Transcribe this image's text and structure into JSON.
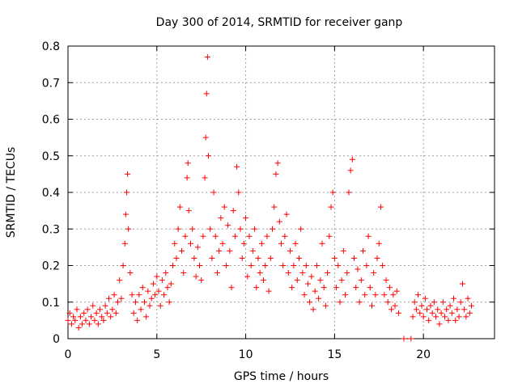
{
  "chart_data": {
    "type": "scatter",
    "title": "Day 300 of 2014, SRMTID for receiver ganp",
    "xlabel": "GPS time / hours",
    "ylabel": "SRMTID / TECUs",
    "xlim": [
      0,
      24
    ],
    "ylim": [
      0,
      0.8
    ],
    "xticks": [
      0,
      5,
      10,
      15,
      20
    ],
    "xtick_labels": [
      "0",
      "5",
      "10",
      "15",
      "20"
    ],
    "yticks": [
      0,
      0.1,
      0.2,
      0.3,
      0.4,
      0.5,
      0.6,
      0.7,
      0.8
    ],
    "ytick_labels": [
      "0",
      "0.1",
      "0.2",
      "0.3",
      "0.4",
      "0.5",
      "0.6",
      "0.7",
      "0.8"
    ],
    "grid": true,
    "marker": "plus",
    "color": "#ff0000",
    "series": [
      {
        "name": "SRMTID",
        "points": [
          [
            0.0,
            0.05
          ],
          [
            0.1,
            0.07
          ],
          [
            0.2,
            0.04
          ],
          [
            0.3,
            0.06
          ],
          [
            0.4,
            0.05
          ],
          [
            0.5,
            0.08
          ],
          [
            0.6,
            0.03
          ],
          [
            0.7,
            0.06
          ],
          [
            0.8,
            0.04
          ],
          [
            0.9,
            0.07
          ],
          [
            1.0,
            0.05
          ],
          [
            1.1,
            0.08
          ],
          [
            1.2,
            0.04
          ],
          [
            1.3,
            0.06
          ],
          [
            1.4,
            0.09
          ],
          [
            1.5,
            0.05
          ],
          [
            1.6,
            0.07
          ],
          [
            1.7,
            0.04
          ],
          [
            1.8,
            0.08
          ],
          [
            1.9,
            0.06
          ],
          [
            2.0,
            0.05
          ],
          [
            2.1,
            0.09
          ],
          [
            2.2,
            0.07
          ],
          [
            2.3,
            0.11
          ],
          [
            2.4,
            0.06
          ],
          [
            2.5,
            0.08
          ],
          [
            2.6,
            0.12
          ],
          [
            2.7,
            0.07
          ],
          [
            2.8,
            0.1
          ],
          [
            2.9,
            0.16
          ],
          [
            3.0,
            0.11
          ],
          [
            3.1,
            0.2
          ],
          [
            3.2,
            0.26
          ],
          [
            3.25,
            0.34
          ],
          [
            3.3,
            0.4
          ],
          [
            3.35,
            0.45
          ],
          [
            3.4,
            0.3
          ],
          [
            3.5,
            0.18
          ],
          [
            3.6,
            0.12
          ],
          [
            3.7,
            0.07
          ],
          [
            3.8,
            0.1
          ],
          [
            3.9,
            0.05
          ],
          [
            4.0,
            0.12
          ],
          [
            4.1,
            0.08
          ],
          [
            4.2,
            0.14
          ],
          [
            4.3,
            0.1
          ],
          [
            4.4,
            0.06
          ],
          [
            4.5,
            0.13
          ],
          [
            4.6,
            0.09
          ],
          [
            4.7,
            0.11
          ],
          [
            4.8,
            0.15
          ],
          [
            4.9,
            0.12
          ],
          [
            5.0,
            0.17
          ],
          [
            5.1,
            0.13
          ],
          [
            5.2,
            0.09
          ],
          [
            5.3,
            0.16
          ],
          [
            5.4,
            0.12
          ],
          [
            5.5,
            0.18
          ],
          [
            5.6,
            0.14
          ],
          [
            5.7,
            0.1
          ],
          [
            5.8,
            0.15
          ],
          [
            5.9,
            0.2
          ],
          [
            6.0,
            0.26
          ],
          [
            6.1,
            0.22
          ],
          [
            6.2,
            0.3
          ],
          [
            6.3,
            0.36
          ],
          [
            6.4,
            0.24
          ],
          [
            6.5,
            0.18
          ],
          [
            6.6,
            0.28
          ],
          [
            6.7,
            0.44
          ],
          [
            6.75,
            0.48
          ],
          [
            6.8,
            0.35
          ],
          [
            6.9,
            0.26
          ],
          [
            7.0,
            0.3
          ],
          [
            7.1,
            0.22
          ],
          [
            7.2,
            0.17
          ],
          [
            7.3,
            0.25
          ],
          [
            7.4,
            0.2
          ],
          [
            7.5,
            0.16
          ],
          [
            7.6,
            0.28
          ],
          [
            7.7,
            0.44
          ],
          [
            7.75,
            0.55
          ],
          [
            7.8,
            0.67
          ],
          [
            7.85,
            0.77
          ],
          [
            7.9,
            0.5
          ],
          [
            8.0,
            0.3
          ],
          [
            8.1,
            0.22
          ],
          [
            8.2,
            0.4
          ],
          [
            8.3,
            0.28
          ],
          [
            8.4,
            0.18
          ],
          [
            8.5,
            0.24
          ],
          [
            8.6,
            0.33
          ],
          [
            8.7,
            0.26
          ],
          [
            8.8,
            0.36
          ],
          [
            8.9,
            0.2
          ],
          [
            9.0,
            0.31
          ],
          [
            9.1,
            0.24
          ],
          [
            9.2,
            0.14
          ],
          [
            9.3,
            0.35
          ],
          [
            9.4,
            0.28
          ],
          [
            9.5,
            0.47
          ],
          [
            9.6,
            0.4
          ],
          [
            9.7,
            0.3
          ],
          [
            9.8,
            0.22
          ],
          [
            9.9,
            0.26
          ],
          [
            10.0,
            0.33
          ],
          [
            10.1,
            0.17
          ],
          [
            10.2,
            0.28
          ],
          [
            10.3,
            0.2
          ],
          [
            10.4,
            0.24
          ],
          [
            10.5,
            0.3
          ],
          [
            10.6,
            0.14
          ],
          [
            10.7,
            0.22
          ],
          [
            10.8,
            0.18
          ],
          [
            10.9,
            0.26
          ],
          [
            11.0,
            0.16
          ],
          [
            11.1,
            0.2
          ],
          [
            11.2,
            0.28
          ],
          [
            11.3,
            0.13
          ],
          [
            11.4,
            0.22
          ],
          [
            11.5,
            0.3
          ],
          [
            11.6,
            0.36
          ],
          [
            11.7,
            0.45
          ],
          [
            11.8,
            0.48
          ],
          [
            11.9,
            0.32
          ],
          [
            12.0,
            0.26
          ],
          [
            12.1,
            0.2
          ],
          [
            12.2,
            0.28
          ],
          [
            12.3,
            0.34
          ],
          [
            12.4,
            0.18
          ],
          [
            12.5,
            0.24
          ],
          [
            12.6,
            0.14
          ],
          [
            12.7,
            0.2
          ],
          [
            12.8,
            0.26
          ],
          [
            12.9,
            0.16
          ],
          [
            13.0,
            0.22
          ],
          [
            13.1,
            0.3
          ],
          [
            13.2,
            0.18
          ],
          [
            13.3,
            0.12
          ],
          [
            13.4,
            0.2
          ],
          [
            13.5,
            0.15
          ],
          [
            13.6,
            0.1
          ],
          [
            13.7,
            0.17
          ],
          [
            13.8,
            0.08
          ],
          [
            13.9,
            0.13
          ],
          [
            14.0,
            0.2
          ],
          [
            14.1,
            0.11
          ],
          [
            14.2,
            0.16
          ],
          [
            14.3,
            0.26
          ],
          [
            14.4,
            0.14
          ],
          [
            14.5,
            0.09
          ],
          [
            14.6,
            0.18
          ],
          [
            14.7,
            0.28
          ],
          [
            14.8,
            0.36
          ],
          [
            14.9,
            0.4
          ],
          [
            15.0,
            0.22
          ],
          [
            15.1,
            0.14
          ],
          [
            15.2,
            0.2
          ],
          [
            15.3,
            0.1
          ],
          [
            15.4,
            0.16
          ],
          [
            15.5,
            0.24
          ],
          [
            15.6,
            0.12
          ],
          [
            15.7,
            0.18
          ],
          [
            15.8,
            0.4
          ],
          [
            15.9,
            0.46
          ],
          [
            16.0,
            0.49
          ],
          [
            16.1,
            0.22
          ],
          [
            16.2,
            0.14
          ],
          [
            16.3,
            0.19
          ],
          [
            16.4,
            0.1
          ],
          [
            16.5,
            0.16
          ],
          [
            16.6,
            0.24
          ],
          [
            16.7,
            0.12
          ],
          [
            16.8,
            0.2
          ],
          [
            16.9,
            0.28
          ],
          [
            17.0,
            0.14
          ],
          [
            17.1,
            0.09
          ],
          [
            17.2,
            0.18
          ],
          [
            17.3,
            0.12
          ],
          [
            17.4,
            0.22
          ],
          [
            17.5,
            0.26
          ],
          [
            17.6,
            0.36
          ],
          [
            17.7,
            0.2
          ],
          [
            17.8,
            0.12
          ],
          [
            17.9,
            0.16
          ],
          [
            18.0,
            0.1
          ],
          [
            18.1,
            0.14
          ],
          [
            18.2,
            0.08
          ],
          [
            18.3,
            0.12
          ],
          [
            18.4,
            0.09
          ],
          [
            18.5,
            0.13
          ],
          [
            18.6,
            0.07
          ],
          [
            18.9,
            0.0
          ],
          [
            19.3,
            0.0
          ],
          [
            19.4,
            0.06
          ],
          [
            19.5,
            0.1
          ],
          [
            19.6,
            0.08
          ],
          [
            19.7,
            0.12
          ],
          [
            19.8,
            0.07
          ],
          [
            19.9,
            0.09
          ],
          [
            20.0,
            0.06
          ],
          [
            20.1,
            0.11
          ],
          [
            20.2,
            0.08
          ],
          [
            20.3,
            0.05
          ],
          [
            20.4,
            0.09
          ],
          [
            20.5,
            0.07
          ],
          [
            20.6,
            0.1
          ],
          [
            20.7,
            0.06
          ],
          [
            20.8,
            0.08
          ],
          [
            20.9,
            0.04
          ],
          [
            21.0,
            0.07
          ],
          [
            21.1,
            0.1
          ],
          [
            21.2,
            0.06
          ],
          [
            21.3,
            0.08
          ],
          [
            21.4,
            0.05
          ],
          [
            21.5,
            0.09
          ],
          [
            21.6,
            0.07
          ],
          [
            21.7,
            0.11
          ],
          [
            21.8,
            0.05
          ],
          [
            21.9,
            0.08
          ],
          [
            22.0,
            0.06
          ],
          [
            22.1,
            0.1
          ],
          [
            22.2,
            0.15
          ],
          [
            22.3,
            0.08
          ],
          [
            22.4,
            0.06
          ],
          [
            22.5,
            0.11
          ],
          [
            22.6,
            0.07
          ],
          [
            22.7,
            0.09
          ]
        ]
      }
    ]
  }
}
